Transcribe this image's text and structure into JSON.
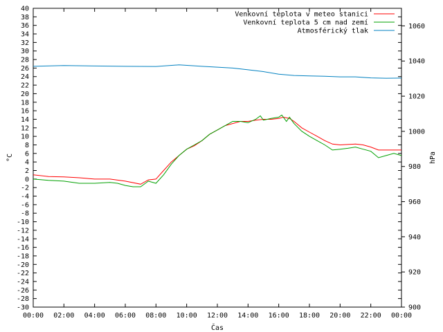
{
  "chart_data": {
    "type": "line",
    "xlabel": "Čas",
    "ylabel_left": "°C",
    "ylabel_right": "hPa",
    "x_ticks": [
      "00:00",
      "02:00",
      "04:00",
      "06:00",
      "08:00",
      "10:00",
      "12:00",
      "14:00",
      "16:00",
      "18:00",
      "20:00",
      "22:00",
      "00:00"
    ],
    "xlim_hours": [
      0,
      24
    ],
    "ylim_left": [
      -30,
      40
    ],
    "y_ticks_left": [
      40,
      38,
      36,
      34,
      32,
      30,
      28,
      26,
      24,
      22,
      20,
      18,
      16,
      14,
      12,
      10,
      8,
      6,
      4,
      2,
      0,
      -2,
      -4,
      -6,
      -8,
      -10,
      -12,
      -14,
      -16,
      -18,
      -20,
      -22,
      -24,
      -26,
      -28,
      -30
    ],
    "ylim_right": [
      900,
      1070
    ],
    "y_ticks_right": [
      1060,
      1040,
      1020,
      1000,
      980,
      960,
      940,
      920,
      900
    ],
    "grid": false,
    "legend_position": "top-right",
    "series": [
      {
        "name": "Venkovní teplota v meteo stanici",
        "color": "#ff0000",
        "axis": "left",
        "points": [
          [
            0,
            1.0
          ],
          [
            1,
            0.6
          ],
          [
            2,
            0.5
          ],
          [
            3,
            0.3
          ],
          [
            4,
            0.0
          ],
          [
            5,
            0.0
          ],
          [
            6,
            -0.5
          ],
          [
            7,
            -1.2
          ],
          [
            7.5,
            -0.2
          ],
          [
            8,
            0.0
          ],
          [
            8.5,
            2.0
          ],
          [
            9,
            4.0
          ],
          [
            9.5,
            5.5
          ],
          [
            10,
            7.0
          ],
          [
            10.5,
            7.8
          ],
          [
            11,
            9.0
          ],
          [
            11.5,
            10.5
          ],
          [
            12,
            11.5
          ],
          [
            12.5,
            12.5
          ],
          [
            13,
            13.0
          ],
          [
            13.5,
            13.5
          ],
          [
            14,
            13.5
          ],
          [
            14.5,
            13.8
          ],
          [
            15,
            14.0
          ],
          [
            15.5,
            14.0
          ],
          [
            16,
            14.2
          ],
          [
            16.3,
            14.5
          ],
          [
            16.7,
            14.2
          ],
          [
            17,
            13.5
          ],
          [
            17.5,
            12.0
          ],
          [
            18,
            11.0
          ],
          [
            18.5,
            10.0
          ],
          [
            19,
            9.0
          ],
          [
            19.5,
            8.2
          ],
          [
            20,
            8.0
          ],
          [
            21,
            8.2
          ],
          [
            21.5,
            8.0
          ],
          [
            22,
            7.5
          ],
          [
            22.5,
            6.8
          ],
          [
            23,
            6.8
          ],
          [
            24,
            6.8
          ]
        ]
      },
      {
        "name": "Venkovní teplota 5 cm nad zemí",
        "color": "#00a000",
        "axis": "left",
        "points": [
          [
            0,
            0.0
          ],
          [
            1,
            -0.3
          ],
          [
            2,
            -0.5
          ],
          [
            3,
            -1.0
          ],
          [
            4,
            -1.0
          ],
          [
            5,
            -0.8
          ],
          [
            5.5,
            -1.0
          ],
          [
            6,
            -1.5
          ],
          [
            6.5,
            -1.8
          ],
          [
            7,
            -1.8
          ],
          [
            7.5,
            -0.5
          ],
          [
            8,
            -1.0
          ],
          [
            8.5,
            1.0
          ],
          [
            9,
            3.5
          ],
          [
            9.5,
            5.5
          ],
          [
            10,
            7.0
          ],
          [
            10.5,
            8.0
          ],
          [
            11,
            9.0
          ],
          [
            11.5,
            10.5
          ],
          [
            12,
            11.5
          ],
          [
            12.5,
            12.5
          ],
          [
            13,
            13.5
          ],
          [
            13.5,
            13.5
          ],
          [
            14,
            13.2
          ],
          [
            14.5,
            14.0
          ],
          [
            14.8,
            14.8
          ],
          [
            15,
            13.8
          ],
          [
            15.5,
            14.2
          ],
          [
            16,
            14.5
          ],
          [
            16.2,
            15.0
          ],
          [
            16.5,
            13.5
          ],
          [
            16.7,
            14.5
          ],
          [
            17,
            13.0
          ],
          [
            17.5,
            11.2
          ],
          [
            18,
            10.0
          ],
          [
            18.5,
            9.0
          ],
          [
            19,
            8.0
          ],
          [
            19.5,
            6.8
          ],
          [
            20,
            7.0
          ],
          [
            20.5,
            7.2
          ],
          [
            21,
            7.5
          ],
          [
            21.5,
            7.0
          ],
          [
            22,
            6.5
          ],
          [
            22.5,
            5.0
          ],
          [
            23,
            5.5
          ],
          [
            23.5,
            6.0
          ],
          [
            24,
            5.5
          ]
        ]
      },
      {
        "name": "Atmosférický tlak",
        "color": "#0080c0",
        "axis": "right",
        "points": [
          [
            0,
            1037.0
          ],
          [
            2,
            1037.4
          ],
          [
            4,
            1037.2
          ],
          [
            6,
            1037.0
          ],
          [
            8,
            1036.9
          ],
          [
            9.5,
            1037.8
          ],
          [
            11,
            1037.0
          ],
          [
            12,
            1036.5
          ],
          [
            13,
            1036.0
          ],
          [
            14,
            1035.0
          ],
          [
            15,
            1034.0
          ],
          [
            16,
            1032.5
          ],
          [
            17,
            1031.8
          ],
          [
            18,
            1031.5
          ],
          [
            19,
            1031.3
          ],
          [
            20,
            1031.0
          ],
          [
            21,
            1031.0
          ],
          [
            22,
            1030.4
          ],
          [
            23,
            1030.2
          ],
          [
            24,
            1030.3
          ]
        ]
      }
    ]
  }
}
